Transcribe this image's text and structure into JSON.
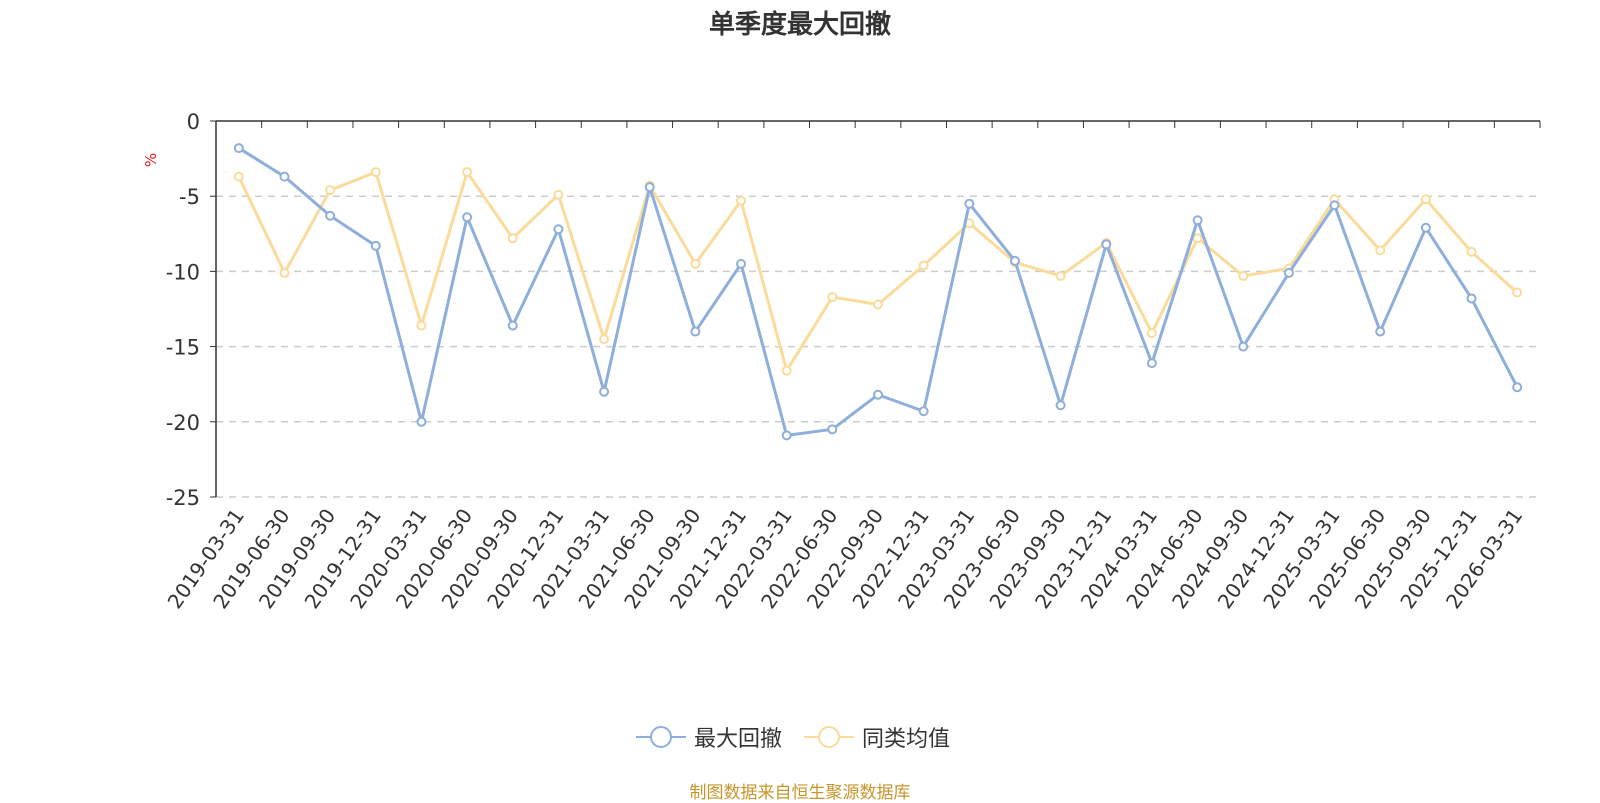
{
  "chart_data": {
    "type": "line",
    "title": "单季度最大回撤",
    "ylabel": "%",
    "ylim": [
      -25,
      0
    ],
    "yticks": [
      0,
      -5,
      -10,
      -15,
      -20,
      -25
    ],
    "grid": true,
    "legend_position": "bottom",
    "categories": [
      "2019-03-31",
      "2019-06-30",
      "2019-09-30",
      "2019-12-31",
      "2020-03-31",
      "2020-06-30",
      "2020-09-30",
      "2020-12-31",
      "2021-03-31",
      "2021-06-30",
      "2021-09-30",
      "2021-12-31",
      "2022-03-31",
      "2022-06-30",
      "2022-09-30",
      "2022-12-31",
      "2023-03-31",
      "2023-06-30",
      "2023-09-30",
      "2023-12-31",
      "2024-03-31",
      "2024-06-30",
      "2024-09-30",
      "2024-12-31",
      "2025-03-31",
      "2025-06-30",
      "2025-09-30",
      "2025-12-31",
      "2026-03-31"
    ],
    "series": [
      {
        "name": "最大回撤",
        "color": "#8eaedb",
        "values": [
          -1.8,
          -3.7,
          -6.3,
          -8.3,
          -20.0,
          -6.4,
          -13.6,
          -7.2,
          -18.0,
          -4.4,
          -14.0,
          -9.5,
          -20.9,
          -20.5,
          -18.2,
          -19.3,
          -5.5,
          -9.3,
          -18.9,
          -8.2,
          -16.1,
          -6.6,
          -15.0,
          -10.1,
          -5.6,
          -14.0,
          -7.1,
          -11.8,
          -17.7
        ]
      },
      {
        "name": "同类均值",
        "color": "#fbdb9a",
        "values": [
          -3.7,
          -10.1,
          -4.6,
          -3.4,
          -13.6,
          -3.4,
          -7.8,
          -4.9,
          -14.5,
          -4.3,
          -9.5,
          -5.3,
          -16.6,
          -11.7,
          -12.2,
          -9.6,
          -6.8,
          -9.4,
          -10.3,
          -8.1,
          -14.1,
          -7.8,
          -10.3,
          -9.8,
          -5.2,
          -8.6,
          -5.2,
          -8.7,
          -11.4
        ]
      }
    ]
  },
  "footer": {
    "source": "制图数据来自恒生聚源数据库"
  }
}
